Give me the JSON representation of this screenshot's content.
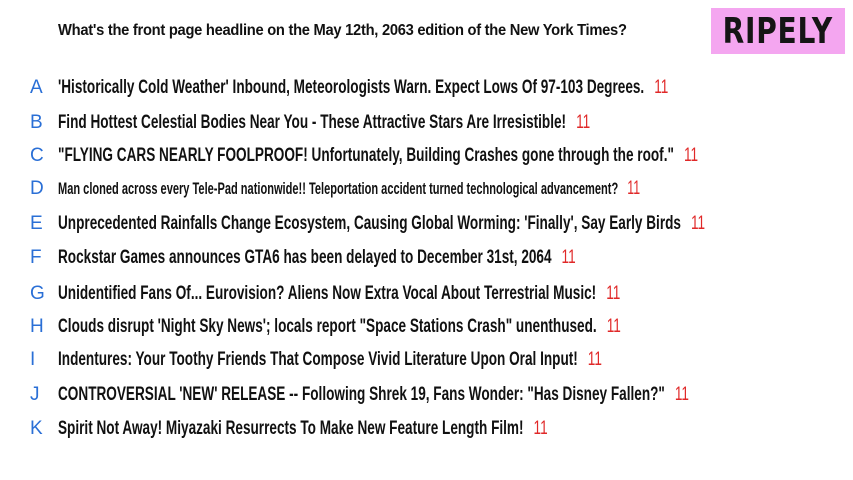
{
  "question": "What's the front page headline on the May 12th, 2063 edition of the New York Times?",
  "logo": "RIPELY",
  "colors": {
    "letter": "#2a6fd6",
    "count": "#e02828",
    "logo_bg": "#f4a6f0"
  },
  "options": [
    {
      "letter": "A",
      "text": "'Historically Cold Weather' Inbound, Meteorologists Warn. Expect Lows Of 97-103 Degrees.",
      "count": "11"
    },
    {
      "letter": "B",
      "text": "Find Hottest Celestial Bodies Near You - These Attractive Stars Are Irresistible!",
      "count": "11"
    },
    {
      "letter": "C",
      "text": "\"FLYING CARS NEARLY FOOLPROOF! Unfortunately, Building Crashes gone through the roof.\"",
      "count": "11"
    },
    {
      "letter": "D",
      "text": "Man cloned across every Tele-Pad nationwide!! Teleportation accident turned technological advancement?",
      "count": "11"
    },
    {
      "letter": "E",
      "text": "Unprecedented Rainfalls Change Ecosystem, Causing Global Worming: 'Finally', Say Early Birds",
      "count": "11"
    },
    {
      "letter": "F",
      "text": "Rockstar Games announces GTA6 has been delayed to December 31st, 2064",
      "count": "11"
    },
    {
      "letter": "G",
      "text": "Unidentified Fans Of... Eurovision? Aliens Now Extra Vocal About Terrestrial Music!",
      "count": "11"
    },
    {
      "letter": "H",
      "text": "Clouds disrupt 'Night Sky News'; locals report \"Space Stations Crash\" unenthused.",
      "count": "11"
    },
    {
      "letter": "I",
      "text": "Indentures: Your Toothy Friends That Compose Vivid Literature Upon Oral Input!",
      "count": "11"
    },
    {
      "letter": "J",
      "text": "CONTROVERSIAL 'NEW' RELEASE -- Following Shrek 19, Fans Wonder: \"Has Disney Fallen?\"",
      "count": "11"
    },
    {
      "letter": "K",
      "text": "Spirit Not Away! Miyazaki Resurrects To Make New Feature Length Film!",
      "count": "11"
    }
  ]
}
